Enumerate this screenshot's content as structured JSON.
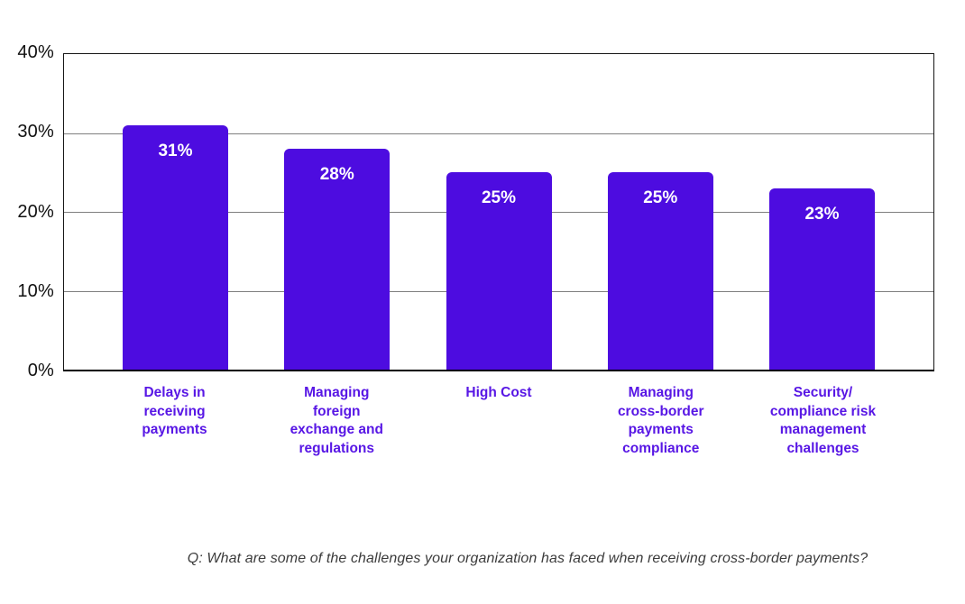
{
  "chart_data": {
    "type": "bar",
    "title": "",
    "categories": [
      "Delays in\nreceiving\npayments",
      "Managing\nforeign\nexchange and\nregulations",
      "High Cost",
      "Managing\ncross-border\npayments\ncompliance",
      "Security/\ncompliance risk\nmanagement\nchallenges"
    ],
    "values": [
      31,
      28,
      25,
      25,
      23
    ],
    "value_labels": [
      "31%",
      "28%",
      "25%",
      "25%",
      "23%"
    ],
    "ylabel": "",
    "xlabel": "",
    "ylim": [
      0,
      40
    ],
    "y_ticks": [
      {
        "label": "40%",
        "value": 40
      },
      {
        "label": "30%",
        "value": 30
      },
      {
        "label": "20%",
        "value": 20
      },
      {
        "label": "10%",
        "value": 10
      },
      {
        "label": "0%",
        "value": 0
      }
    ],
    "grid": "horizontal",
    "legend": "none",
    "colors": {
      "bar": "#4D0CE0",
      "value_label": "#FFFFFF",
      "category_label": "#5817E5",
      "gridline": "#7F7F7F",
      "axis_border": "#151515"
    }
  },
  "caption": "Q: What are some of the challenges your organization has faced when receiving cross-border payments?"
}
